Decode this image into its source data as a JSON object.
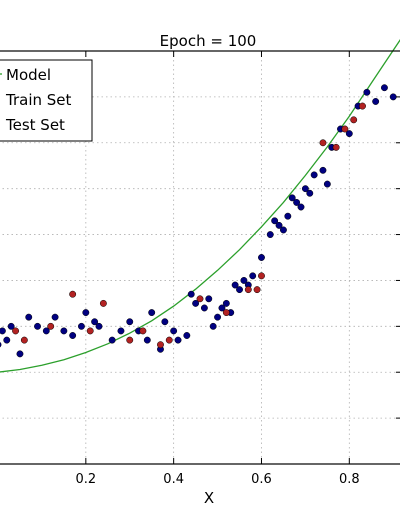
{
  "chart_data": {
    "type": "scatter",
    "title": "Epoch = 100",
    "xlabel": "X",
    "ylabel": "",
    "xlim": [
      0.0,
      0.92
    ],
    "ylim": [
      0.1,
      1.0
    ],
    "xticks": [
      0.2,
      0.4,
      0.6,
      0.8
    ],
    "xtick_labels": [
      "0.2",
      "0.4",
      "0.6",
      "0.8"
    ],
    "yticks": [
      0.1,
      0.2,
      0.3,
      0.4,
      0.5,
      0.6,
      0.7,
      0.8,
      0.9
    ],
    "grid": true,
    "legend": {
      "placement": "top-left"
    },
    "series": [
      {
        "name": "Model",
        "kind": "line",
        "color": "#2ca02c",
        "x": [
          0.0,
          0.05,
          0.1,
          0.15,
          0.2,
          0.25,
          0.3,
          0.35,
          0.4,
          0.45,
          0.5,
          0.55,
          0.6,
          0.65,
          0.7,
          0.75,
          0.8,
          0.85,
          0.92
        ],
        "y": [
          0.3,
          0.306,
          0.315,
          0.327,
          0.343,
          0.362,
          0.385,
          0.412,
          0.444,
          0.481,
          0.522,
          0.567,
          0.617,
          0.67,
          0.729,
          0.791,
          0.858,
          0.93,
          1.03
        ]
      },
      {
        "name": "Train Set",
        "kind": "scatter",
        "color": "#000080",
        "x": [
          0.0,
          0.01,
          0.02,
          0.03,
          0.05,
          0.07,
          0.09,
          0.11,
          0.13,
          0.15,
          0.17,
          0.19,
          0.2,
          0.22,
          0.23,
          0.26,
          0.28,
          0.3,
          0.32,
          0.34,
          0.35,
          0.37,
          0.38,
          0.4,
          0.41,
          0.43,
          0.44,
          0.45,
          0.47,
          0.48,
          0.49,
          0.5,
          0.51,
          0.52,
          0.53,
          0.54,
          0.55,
          0.56,
          0.57,
          0.58,
          0.6,
          0.62,
          0.63,
          0.64,
          0.65,
          0.66,
          0.67,
          0.68,
          0.69,
          0.7,
          0.71,
          0.72,
          0.74,
          0.75,
          0.76,
          0.78,
          0.8,
          0.82,
          0.84,
          0.86,
          0.88,
          0.9
        ],
        "y": [
          0.36,
          0.39,
          0.37,
          0.4,
          0.34,
          0.42,
          0.4,
          0.39,
          0.42,
          0.39,
          0.38,
          0.4,
          0.43,
          0.41,
          0.4,
          0.37,
          0.39,
          0.41,
          0.39,
          0.37,
          0.43,
          0.35,
          0.41,
          0.39,
          0.37,
          0.38,
          0.47,
          0.45,
          0.44,
          0.46,
          0.4,
          0.42,
          0.44,
          0.45,
          0.43,
          0.49,
          0.48,
          0.5,
          0.49,
          0.51,
          0.55,
          0.6,
          0.63,
          0.62,
          0.61,
          0.64,
          0.68,
          0.67,
          0.66,
          0.7,
          0.69,
          0.73,
          0.74,
          0.71,
          0.79,
          0.83,
          0.82,
          0.88,
          0.91,
          0.89,
          0.92,
          0.9
        ]
      },
      {
        "name": "Test Set",
        "kind": "scatter",
        "color": "#b22222",
        "x": [
          0.04,
          0.06,
          0.12,
          0.17,
          0.21,
          0.24,
          0.3,
          0.33,
          0.37,
          0.39,
          0.46,
          0.52,
          0.57,
          0.59,
          0.6,
          0.74,
          0.77,
          0.79,
          0.81,
          0.83
        ],
        "y": [
          0.39,
          0.37,
          0.4,
          0.47,
          0.39,
          0.45,
          0.37,
          0.39,
          0.36,
          0.37,
          0.46,
          0.43,
          0.48,
          0.48,
          0.51,
          0.8,
          0.79,
          0.83,
          0.85,
          0.88
        ]
      }
    ]
  }
}
